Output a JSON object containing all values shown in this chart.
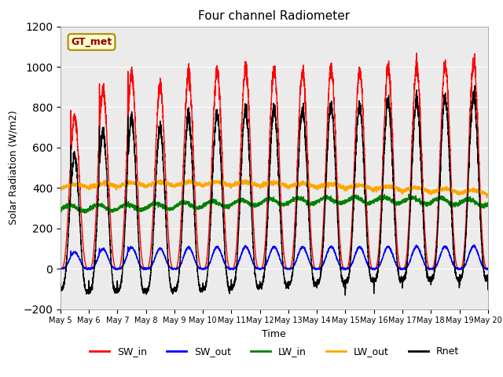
{
  "title": "Four channel Radiometer",
  "xlabel": "Time",
  "ylabel": "Solar Radiation (W/m2)",
  "ylim": [
    -200,
    1200
  ],
  "yticks": [
    -200,
    0,
    200,
    400,
    600,
    800,
    1000,
    1200
  ],
  "annotation_text": "GT_met",
  "annotation_color": "#8B0000",
  "annotation_bg": "#FFFFCC",
  "bg_color": "#EBEBEB",
  "grid_color": "white",
  "series": {
    "SW_in": {
      "color": "red",
      "lw": 1.0
    },
    "SW_out": {
      "color": "blue",
      "lw": 1.0
    },
    "LW_in": {
      "color": "green",
      "lw": 1.0
    },
    "LW_out": {
      "color": "orange",
      "lw": 1.0
    },
    "Rnet": {
      "color": "black",
      "lw": 1.0
    }
  },
  "n_days": 15,
  "pts_per_day": 288,
  "start_day": 5
}
